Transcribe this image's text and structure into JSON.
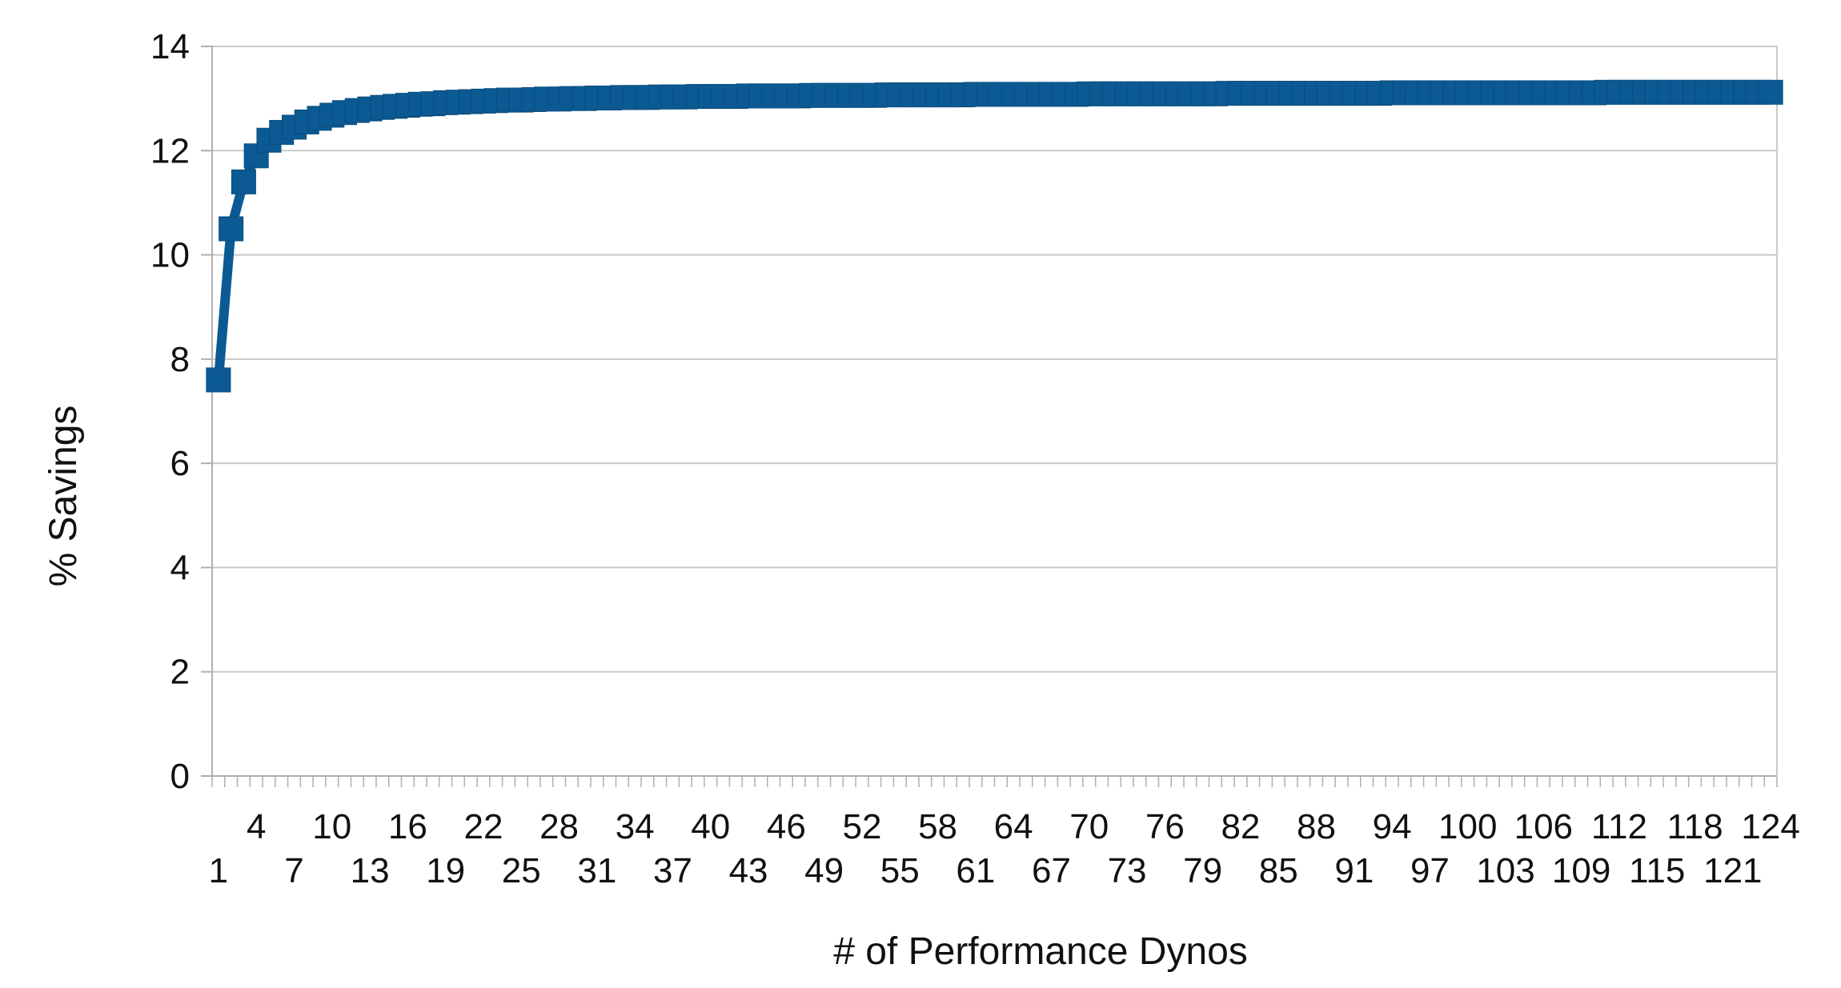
{
  "chart_data": {
    "type": "line",
    "title": "",
    "xlabel": "# of Performance Dynos",
    "ylabel": "% Savings",
    "x_range": [
      1,
      124
    ],
    "ylim": [
      0,
      14
    ],
    "y_ticks": [
      0,
      2,
      4,
      6,
      8,
      10,
      12,
      14
    ],
    "x_tick_labels_row1": [
      4,
      10,
      16,
      22,
      28,
      34,
      40,
      46,
      52,
      58,
      64,
      70,
      76,
      82,
      88,
      94,
      100,
      106,
      112,
      118,
      124
    ],
    "x_tick_labels_row2": [
      1,
      7,
      13,
      19,
      25,
      31,
      37,
      43,
      49,
      55,
      61,
      67,
      73,
      79,
      85,
      91,
      97,
      103,
      109,
      115,
      121
    ],
    "grid": "horizontal",
    "legend": "none",
    "marker": "square",
    "color": "#0B5A93",
    "series": [
      {
        "x": [
          1,
          2,
          3,
          4,
          5,
          6,
          7,
          8,
          9,
          10,
          11,
          12,
          13,
          14,
          15,
          16,
          17,
          18,
          19,
          20,
          21,
          22,
          23,
          24,
          25,
          26,
          27,
          28,
          29,
          30,
          31,
          32,
          33,
          34,
          35,
          36,
          37,
          38,
          39,
          40,
          41,
          42,
          43,
          44,
          45,
          46,
          47,
          48,
          49,
          50,
          51,
          52,
          53,
          54,
          55,
          56,
          57,
          58,
          59,
          60,
          61,
          62,
          63,
          64,
          65,
          66,
          67,
          68,
          69,
          70,
          71,
          72,
          73,
          74,
          75,
          76,
          77,
          78,
          79,
          80,
          81,
          82,
          83,
          84,
          85,
          86,
          87,
          88,
          89,
          90,
          91,
          92,
          93,
          94,
          95,
          96,
          97,
          98,
          99,
          100,
          101,
          102,
          103,
          104,
          105,
          106,
          107,
          108,
          109,
          110,
          111,
          112,
          113,
          114,
          115,
          116,
          117,
          118,
          119,
          120,
          121,
          122,
          123,
          124
        ],
        "values": [
          7.6,
          10.5,
          11.4,
          11.9,
          12.2,
          12.35,
          12.45,
          12.55,
          12.62,
          12.68,
          12.73,
          12.77,
          12.8,
          12.83,
          12.85,
          12.87,
          12.89,
          12.9,
          12.92,
          12.93,
          12.94,
          12.95,
          12.96,
          12.97,
          12.97,
          12.98,
          12.99,
          12.99,
          13.0,
          13.0,
          13.01,
          13.01,
          13.02,
          13.02,
          13.02,
          13.03,
          13.03,
          13.03,
          13.04,
          13.04,
          13.04,
          13.04,
          13.05,
          13.05,
          13.05,
          13.05,
          13.05,
          13.06,
          13.06,
          13.06,
          13.06,
          13.06,
          13.06,
          13.07,
          13.07,
          13.07,
          13.07,
          13.07,
          13.07,
          13.07,
          13.08,
          13.08,
          13.08,
          13.08,
          13.08,
          13.08,
          13.08,
          13.08,
          13.08,
          13.09,
          13.09,
          13.09,
          13.09,
          13.09,
          13.09,
          13.09,
          13.09,
          13.09,
          13.09,
          13.09,
          13.1,
          13.1,
          13.1,
          13.1,
          13.1,
          13.1,
          13.1,
          13.1,
          13.1,
          13.1,
          13.1,
          13.1,
          13.1,
          13.11,
          13.11,
          13.11,
          13.11,
          13.11,
          13.11,
          13.11,
          13.11,
          13.11,
          13.11,
          13.11,
          13.11,
          13.11,
          13.11,
          13.11,
          13.11,
          13.11,
          13.12,
          13.12,
          13.12,
          13.12,
          13.12,
          13.12,
          13.12,
          13.12,
          13.12,
          13.12,
          13.12,
          13.12,
          13.12,
          13.12
        ]
      }
    ]
  }
}
